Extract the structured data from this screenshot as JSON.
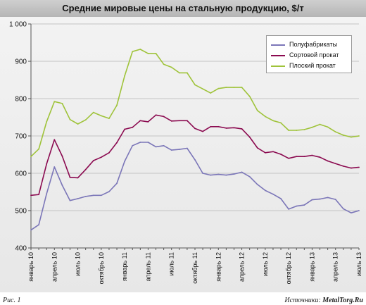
{
  "title": "Средние мировые цены на стальную продукцию, $/т",
  "footer": {
    "fig_label": "Рис. 1",
    "source_label": "Источники:",
    "source_value": "MetalTorg.Ru"
  },
  "chart_data": {
    "type": "line",
    "title": "Средние мировые цены на стальную продукцию, $/т",
    "ylim": [
      400,
      1000
    ],
    "yticks": [
      {
        "value": 400,
        "label": "400"
      },
      {
        "value": 500,
        "label": "500"
      },
      {
        "value": 600,
        "label": "600"
      },
      {
        "value": 700,
        "label": "700"
      },
      {
        "value": 800,
        "label": "800"
      },
      {
        "value": 900,
        "label": "900"
      },
      {
        "value": 1000,
        "label": "1 000"
      }
    ],
    "grid": "horizontal",
    "legend_position": "top-right",
    "x_tick_labels": [
      "январь 10",
      "апрель 10",
      "июль 10",
      "октябрь 10",
      "январь 11",
      "апрель 11",
      "июль 11",
      "октябрь 11",
      "январь 12",
      "апрель 12",
      "июль 12",
      "октябрь 12",
      "январь 13",
      "апрель 13",
      "июль 13"
    ],
    "series": [
      {
        "name": "Полуфабрикаты",
        "color": "#7b76b8",
        "values": [
          448,
          462,
          545,
          617,
          568,
          527,
          532,
          538,
          541,
          541,
          551,
          573,
          632,
          674,
          683,
          683,
          671,
          674,
          662,
          664,
          667,
          636,
          600,
          595,
          597,
          595,
          598,
          603,
          591,
          570,
          554,
          544,
          532,
          504,
          512,
          515,
          529,
          531,
          535,
          530,
          505,
          494,
          500
        ]
      },
      {
        "name": "Сортовой прокат",
        "color": "#8b0a50",
        "values": [
          541,
          543,
          625,
          690,
          646,
          589,
          588,
          610,
          634,
          643,
          655,
          682,
          718,
          723,
          741,
          738,
          756,
          752,
          740,
          741,
          741,
          720,
          712,
          725,
          725,
          721,
          722,
          719,
          697,
          668,
          655,
          658,
          651,
          640,
          645,
          645,
          648,
          643,
          633,
          626,
          619,
          614,
          616
        ]
      },
      {
        "name": "Плоский прокат",
        "color": "#9fc33a",
        "values": [
          645,
          665,
          738,
          792,
          787,
          744,
          732,
          743,
          763,
          754,
          747,
          782,
          861,
          926,
          932,
          921,
          921,
          892,
          884,
          869,
          869,
          837,
          826,
          815,
          827,
          830,
          830,
          830,
          806,
          768,
          752,
          741,
          735,
          715,
          715,
          717,
          723,
          731,
          724,
          711,
          702,
          697,
          700
        ]
      }
    ]
  }
}
